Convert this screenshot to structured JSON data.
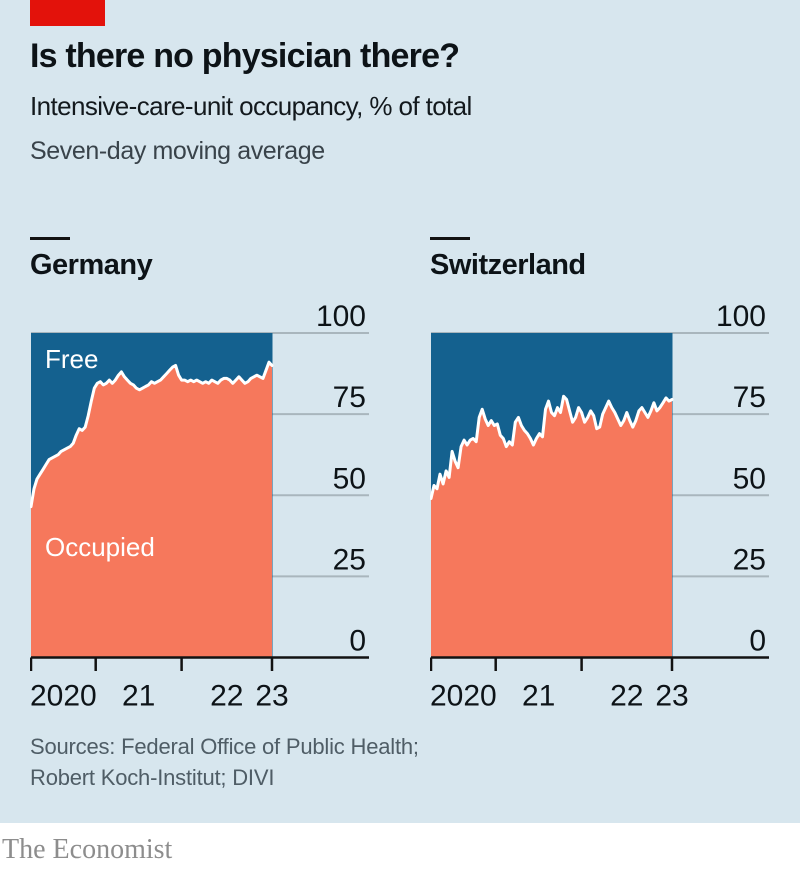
{
  "header": {
    "title": "Is there no physician there?",
    "subtitle": "Intensive-care-unit occupancy, % of total",
    "note": "Seven-day moving average"
  },
  "footer": {
    "sources_line1": "Sources: Federal Office of Public Health;",
    "sources_line2": "Robert Koch-Institut; DIVI",
    "brand": "The Economist"
  },
  "colors": {
    "accent_red": "#e3120b",
    "background": "#d7e6ee",
    "free_blue": "#14618f",
    "occupied_orange": "#f6785c",
    "boundary_line": "#ffffff",
    "axis": "#121212",
    "grid": "#a9b6bd",
    "tick_text": "#0d1317"
  },
  "chart_data": [
    {
      "type": "area",
      "title": "Germany",
      "ylim": [
        0,
        100
      ],
      "y_tick_labels": [
        "0",
        "25",
        "50",
        "75",
        "100"
      ],
      "y_tick_values": [
        0,
        25,
        50,
        75,
        100
      ],
      "x_tick_labels": [
        "2020",
        "21",
        "22",
        "23"
      ],
      "x_range_note": "data from early 2020 to early 2023, seven-day moving average",
      "grid": true,
      "area_labels": {
        "free": "Free",
        "occupied": "Occupied"
      },
      "occupied_pct": [
        46.5,
        52,
        55,
        56.5,
        58,
        59.5,
        61,
        61.5,
        62,
        62.5,
        63.5,
        64,
        64.5,
        65,
        66,
        68.5,
        70.5,
        70,
        71,
        74.5,
        79,
        83,
        84.5,
        85,
        84,
        84.5,
        85.5,
        84.5,
        85.5,
        87,
        88,
        86.5,
        85.5,
        84.5,
        84,
        83,
        82.5,
        83,
        83.5,
        84,
        85,
        84.5,
        85,
        85.5,
        86.5,
        87.5,
        88.5,
        89.5,
        90,
        87,
        85.5,
        85.5,
        85,
        85.5,
        85,
        85.5,
        85,
        84.5,
        85,
        84.5,
        85.5,
        85,
        84.5,
        85.5,
        86,
        86,
        85.5,
        84.5,
        85.5,
        86.5,
        85.5,
        84.5,
        85,
        86,
        86.5,
        87,
        86.5,
        86,
        88.5,
        91,
        90
      ]
    },
    {
      "type": "area",
      "title": "Switzerland",
      "ylim": [
        0,
        100
      ],
      "y_tick_labels": [
        "0",
        "25",
        "50",
        "75",
        "100"
      ],
      "y_tick_values": [
        0,
        25,
        50,
        75,
        100
      ],
      "x_tick_labels": [
        "2020",
        "21",
        "22",
        "23"
      ],
      "x_range_note": "data from early 2020 to early 2023, seven-day moving average",
      "grid": true,
      "area_labels": null,
      "occupied_pct": [
        49,
        53,
        52,
        56.5,
        53.5,
        57.5,
        55.5,
        63.5,
        60.5,
        58.5,
        65,
        67,
        65.5,
        67,
        67.5,
        66.5,
        74,
        76.5,
        73.5,
        71.5,
        73,
        71.5,
        72,
        68.5,
        67.5,
        65,
        66.5,
        65.5,
        72.5,
        74,
        71.5,
        70,
        69,
        67.5,
        65.5,
        67.5,
        69,
        68,
        76.5,
        79,
        75.5,
        74.5,
        77,
        75.5,
        80.5,
        79.5,
        76,
        72.5,
        74,
        77,
        75.5,
        72.5,
        74,
        76,
        74.5,
        70.5,
        71,
        75,
        77,
        79,
        77,
        75.5,
        73.5,
        71.5,
        73,
        75.5,
        73,
        71,
        73,
        76,
        77,
        75.5,
        74,
        76,
        78.5,
        76,
        77,
        78.5,
        80,
        79,
        79.5
      ]
    }
  ]
}
